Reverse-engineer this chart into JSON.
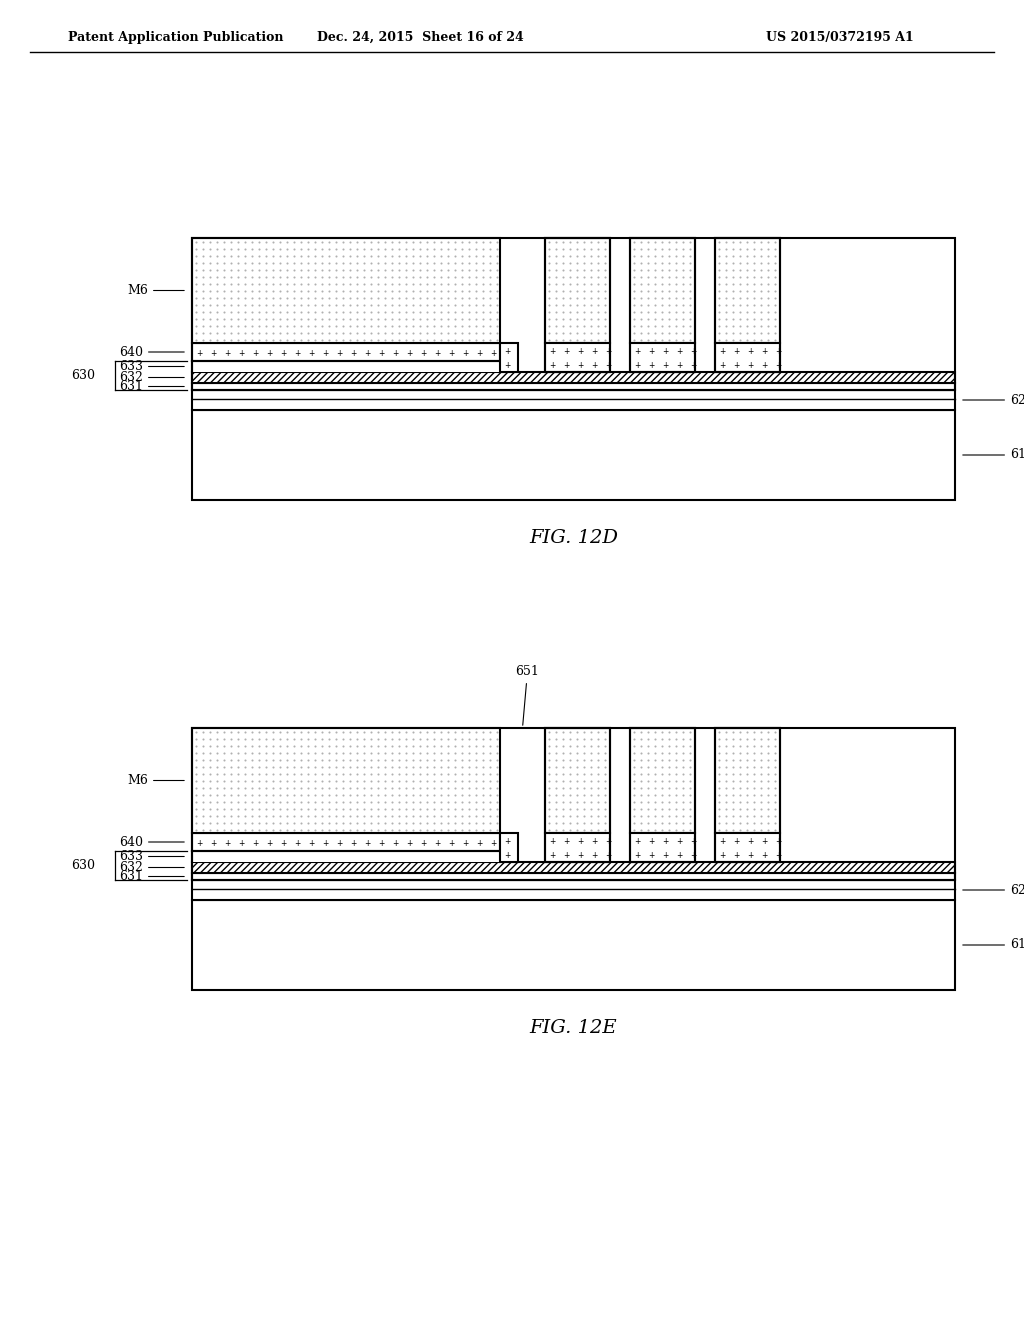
{
  "bg_color": "#ffffff",
  "header_left": "Patent Application Publication",
  "header_mid": "Dec. 24, 2015  Sheet 16 of 24",
  "header_right": "US 2015/0372195 A1",
  "fig1_label": "FIG. 12D",
  "fig2_label": "FIG. 12E",
  "line_color": "#000000",
  "dot_color": "#bbbbbb",
  "hatch_color": "#000000"
}
